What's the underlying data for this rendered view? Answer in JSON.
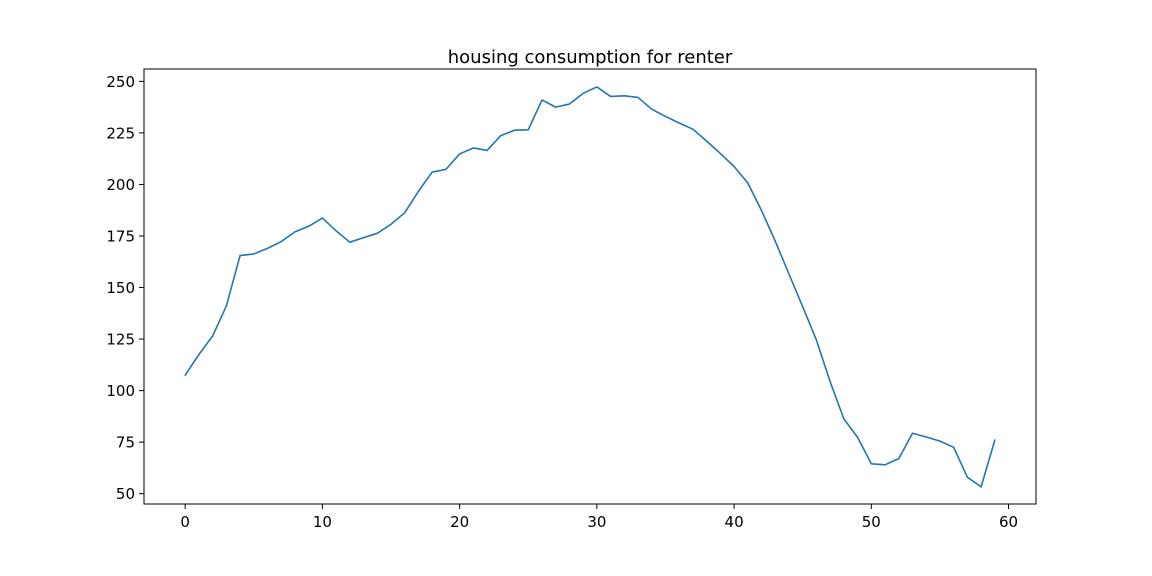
{
  "chart_data": {
    "type": "line",
    "title": "housing consumption for renter",
    "xlabel": "",
    "ylabel": "",
    "xlim": [
      -3,
      62
    ],
    "ylim": [
      45,
      256
    ],
    "x_ticks": [
      0,
      10,
      20,
      30,
      40,
      50,
      60
    ],
    "y_ticks": [
      50,
      75,
      100,
      125,
      150,
      175,
      200,
      225,
      250
    ],
    "x_tick_labels": [
      "0",
      "10",
      "20",
      "30",
      "40",
      "50",
      "60"
    ],
    "y_tick_labels": [
      "50",
      "75",
      "100",
      "125",
      "150",
      "175",
      "200",
      "225",
      "250"
    ],
    "grid": false,
    "legend": "none",
    "colors": {
      "line": "#1f77b4",
      "axes": "#000000",
      "background": "#ffffff"
    },
    "series": [
      {
        "x": [
          0,
          1,
          2,
          3,
          4,
          5,
          6,
          7,
          8,
          9,
          10,
          11,
          12,
          13,
          14,
          15,
          16,
          17,
          18,
          19,
          20,
          21,
          22,
          23,
          24,
          25,
          26,
          27,
          28,
          29,
          30,
          31,
          32,
          33,
          34,
          35,
          36,
          37,
          38,
          39,
          40,
          41,
          42,
          43,
          44,
          45,
          46,
          47,
          48,
          49,
          50,
          51,
          52,
          53,
          54,
          55,
          56,
          57,
          58,
          59
        ],
        "values": [
          107.5,
          117.5,
          126.5,
          141,
          165.5,
          166.3,
          169,
          172.3,
          177,
          179.7,
          183.7,
          177.5,
          172,
          174.2,
          176.3,
          180.7,
          186.3,
          196.7,
          206,
          207.3,
          214.8,
          217.7,
          216.5,
          223.7,
          226.3,
          226.5,
          241,
          237.5,
          239,
          244.2,
          247.3,
          242.7,
          243,
          242.2,
          236.5,
          233,
          229.8,
          226.8,
          221,
          215,
          208.7,
          200.7,
          187.3,
          172.5,
          156.5,
          140.7,
          124.5,
          104.3,
          86.3,
          77.3,
          64.5,
          64,
          67,
          79.3,
          77.5,
          75.5,
          72.5,
          58,
          53.3,
          76
        ]
      }
    ]
  }
}
